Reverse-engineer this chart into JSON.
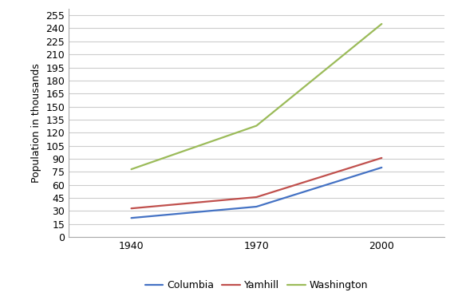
{
  "years": [
    1940,
    1970,
    2000
  ],
  "series": {
    "Columbia": {
      "values": [
        22,
        35,
        80
      ],
      "color": "#4472C4"
    },
    "Yamhill": {
      "values": [
        33,
        46,
        91
      ],
      "color": "#C0504D"
    },
    "Washington": {
      "values": [
        78,
        128,
        245
      ],
      "color": "#9BBB59"
    }
  },
  "ylabel": "Population in thousands",
  "yticks": [
    0,
    15,
    30,
    45,
    60,
    75,
    90,
    105,
    120,
    135,
    150,
    165,
    180,
    195,
    210,
    225,
    240,
    255
  ],
  "ylim": [
    0,
    262
  ],
  "xlim": [
    1925,
    2015
  ],
  "xticks": [
    1940,
    1970,
    2000
  ],
  "background_color": "#ffffff",
  "grid_color": "#cccccc",
  "legend_labels": [
    "Columbia",
    "Yamhill",
    "Washington"
  ]
}
